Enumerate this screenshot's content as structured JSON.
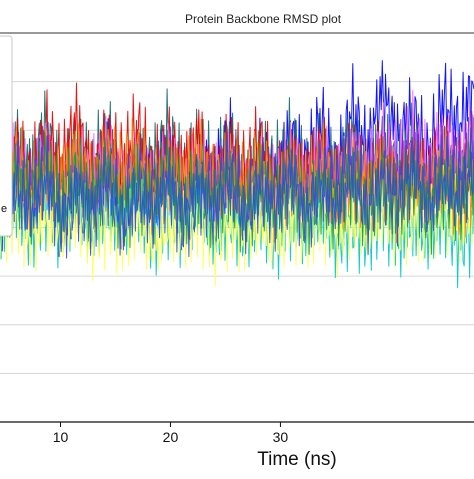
{
  "chart_data": {
    "type": "line",
    "title": "Protein Backbone RMSD plot",
    "xlabel": "Time (ns)",
    "ylabel": "",
    "x_ticks": [
      10,
      20,
      30
    ],
    "xlim": [
      4.5,
      47.6
    ],
    "ylim": [
      0,
      2
    ],
    "grid": true,
    "legend_partial_text": "e",
    "legend_position": "left",
    "series": [
      {
        "color": "#0000ff",
        "values": [
          1.08,
          1.23,
          1.1,
          1.32,
          1.05,
          1.26,
          1.12,
          1.35,
          1.07,
          1.28,
          1.16,
          1.4,
          1.09,
          1.3,
          1.21,
          1.44,
          1.13,
          1.37,
          1.24,
          1.48,
          1.3,
          1.55,
          1.22,
          1.62,
          1.38,
          1.7,
          1.45,
          1.58,
          1.34,
          1.66,
          1.5,
          1.74
        ]
      },
      {
        "color": "#0f6b6b",
        "values": [
          1.2,
          1.45,
          1.28,
          1.52,
          1.18,
          1.38,
          1.26,
          1.5,
          1.15,
          1.36,
          1.3,
          1.49,
          1.22,
          1.41,
          1.27,
          1.47,
          1.19,
          1.35,
          1.29,
          1.43,
          1.24,
          1.4,
          1.28,
          1.45,
          1.22,
          1.38,
          1.26,
          1.42,
          1.2,
          1.37,
          1.25,
          1.4
        ]
      },
      {
        "color": "#e60000",
        "values": [
          1.25,
          1.4,
          1.22,
          1.48,
          1.3,
          1.55,
          1.27,
          1.44,
          1.33,
          1.5,
          1.24,
          1.42,
          1.29,
          1.46,
          1.21,
          1.39,
          1.26,
          1.43,
          1.2,
          1.35,
          1.24,
          1.38,
          1.18,
          1.33,
          1.22,
          1.37,
          1.19,
          1.31,
          1.23,
          1.34,
          1.2,
          1.3
        ]
      },
      {
        "color": "#ff66ff",
        "values": [
          1.16,
          1.33,
          1.2,
          1.4,
          1.14,
          1.3,
          1.22,
          1.36,
          1.17,
          1.31,
          1.21,
          1.35,
          1.15,
          1.29,
          1.19,
          1.33,
          1.16,
          1.28,
          1.2,
          1.32,
          1.18,
          1.34,
          1.22,
          1.38,
          1.25,
          1.42,
          1.3,
          1.47,
          1.28,
          1.45,
          1.33,
          1.5
        ]
      },
      {
        "color": "#7a2fa8",
        "values": [
          1.12,
          1.3,
          1.18,
          1.34,
          1.1,
          1.27,
          1.16,
          1.32,
          1.11,
          1.26,
          1.17,
          1.31,
          1.13,
          1.25,
          1.19,
          1.3,
          1.12,
          1.24,
          1.18,
          1.29,
          1.14,
          1.27,
          1.2,
          1.33,
          1.16,
          1.3,
          1.22,
          1.36,
          1.18,
          1.31,
          1.24,
          1.37
        ]
      },
      {
        "color": "#00c8c8",
        "values": [
          1.0,
          1.15,
          0.98,
          1.12,
          1.02,
          1.18,
          0.99,
          1.1,
          1.04,
          1.16,
          0.97,
          1.08,
          1.01,
          1.14,
          0.96,
          1.06,
          1.0,
          1.12,
          0.95,
          1.05,
          0.99,
          1.11,
          0.94,
          1.04,
          0.98,
          1.09,
          0.93,
          1.03,
          0.97,
          1.08,
          0.92,
          1.02
        ]
      },
      {
        "color": "#ffff55",
        "values": [
          1.02,
          1.1,
          0.97,
          1.06,
          1.0,
          1.08,
          0.95,
          1.04,
          0.98,
          1.07,
          0.93,
          1.02,
          0.99,
          1.05,
          0.94,
          1.03,
          0.97,
          1.06,
          0.95,
          1.04,
          1.0,
          1.08,
          0.98,
          1.06,
          1.02,
          1.1,
          1.0,
          1.07,
          1.04,
          1.11,
          1.02,
          1.09
        ]
      },
      {
        "color": "#ff8800",
        "values": [
          1.22,
          1.34,
          1.18,
          1.3,
          1.24,
          1.37,
          1.2,
          1.32,
          1.26,
          1.36,
          1.19,
          1.29,
          1.23,
          1.35,
          1.17,
          1.28,
          1.21,
          1.33,
          1.16,
          1.27,
          1.2,
          1.31,
          1.15,
          1.26,
          1.19,
          1.3,
          1.14,
          1.25,
          1.18,
          1.29,
          1.13,
          1.24
        ]
      },
      {
        "color": "#1a9a3a",
        "values": [
          1.1,
          1.28,
          1.14,
          1.32,
          1.08,
          1.25,
          1.12,
          1.3,
          1.06,
          1.23,
          1.11,
          1.29,
          1.07,
          1.24,
          1.1,
          1.27,
          1.05,
          1.22,
          1.09,
          1.26,
          1.06,
          1.21,
          1.1,
          1.25,
          1.07,
          1.22,
          1.11,
          1.26,
          1.08,
          1.23,
          1.12,
          1.27
        ]
      },
      {
        "color": "#2b4fd9",
        "values": [
          1.05,
          1.22,
          1.09,
          1.26,
          1.03,
          1.19,
          1.07,
          1.24,
          1.02,
          1.18,
          1.08,
          1.23,
          1.04,
          1.2,
          1.09,
          1.25,
          1.05,
          1.21,
          1.1,
          1.27,
          1.06,
          1.23,
          1.12,
          1.29,
          1.08,
          1.25,
          1.14,
          1.31,
          1.1,
          1.27,
          1.16,
          1.33
        ]
      }
    ]
  }
}
